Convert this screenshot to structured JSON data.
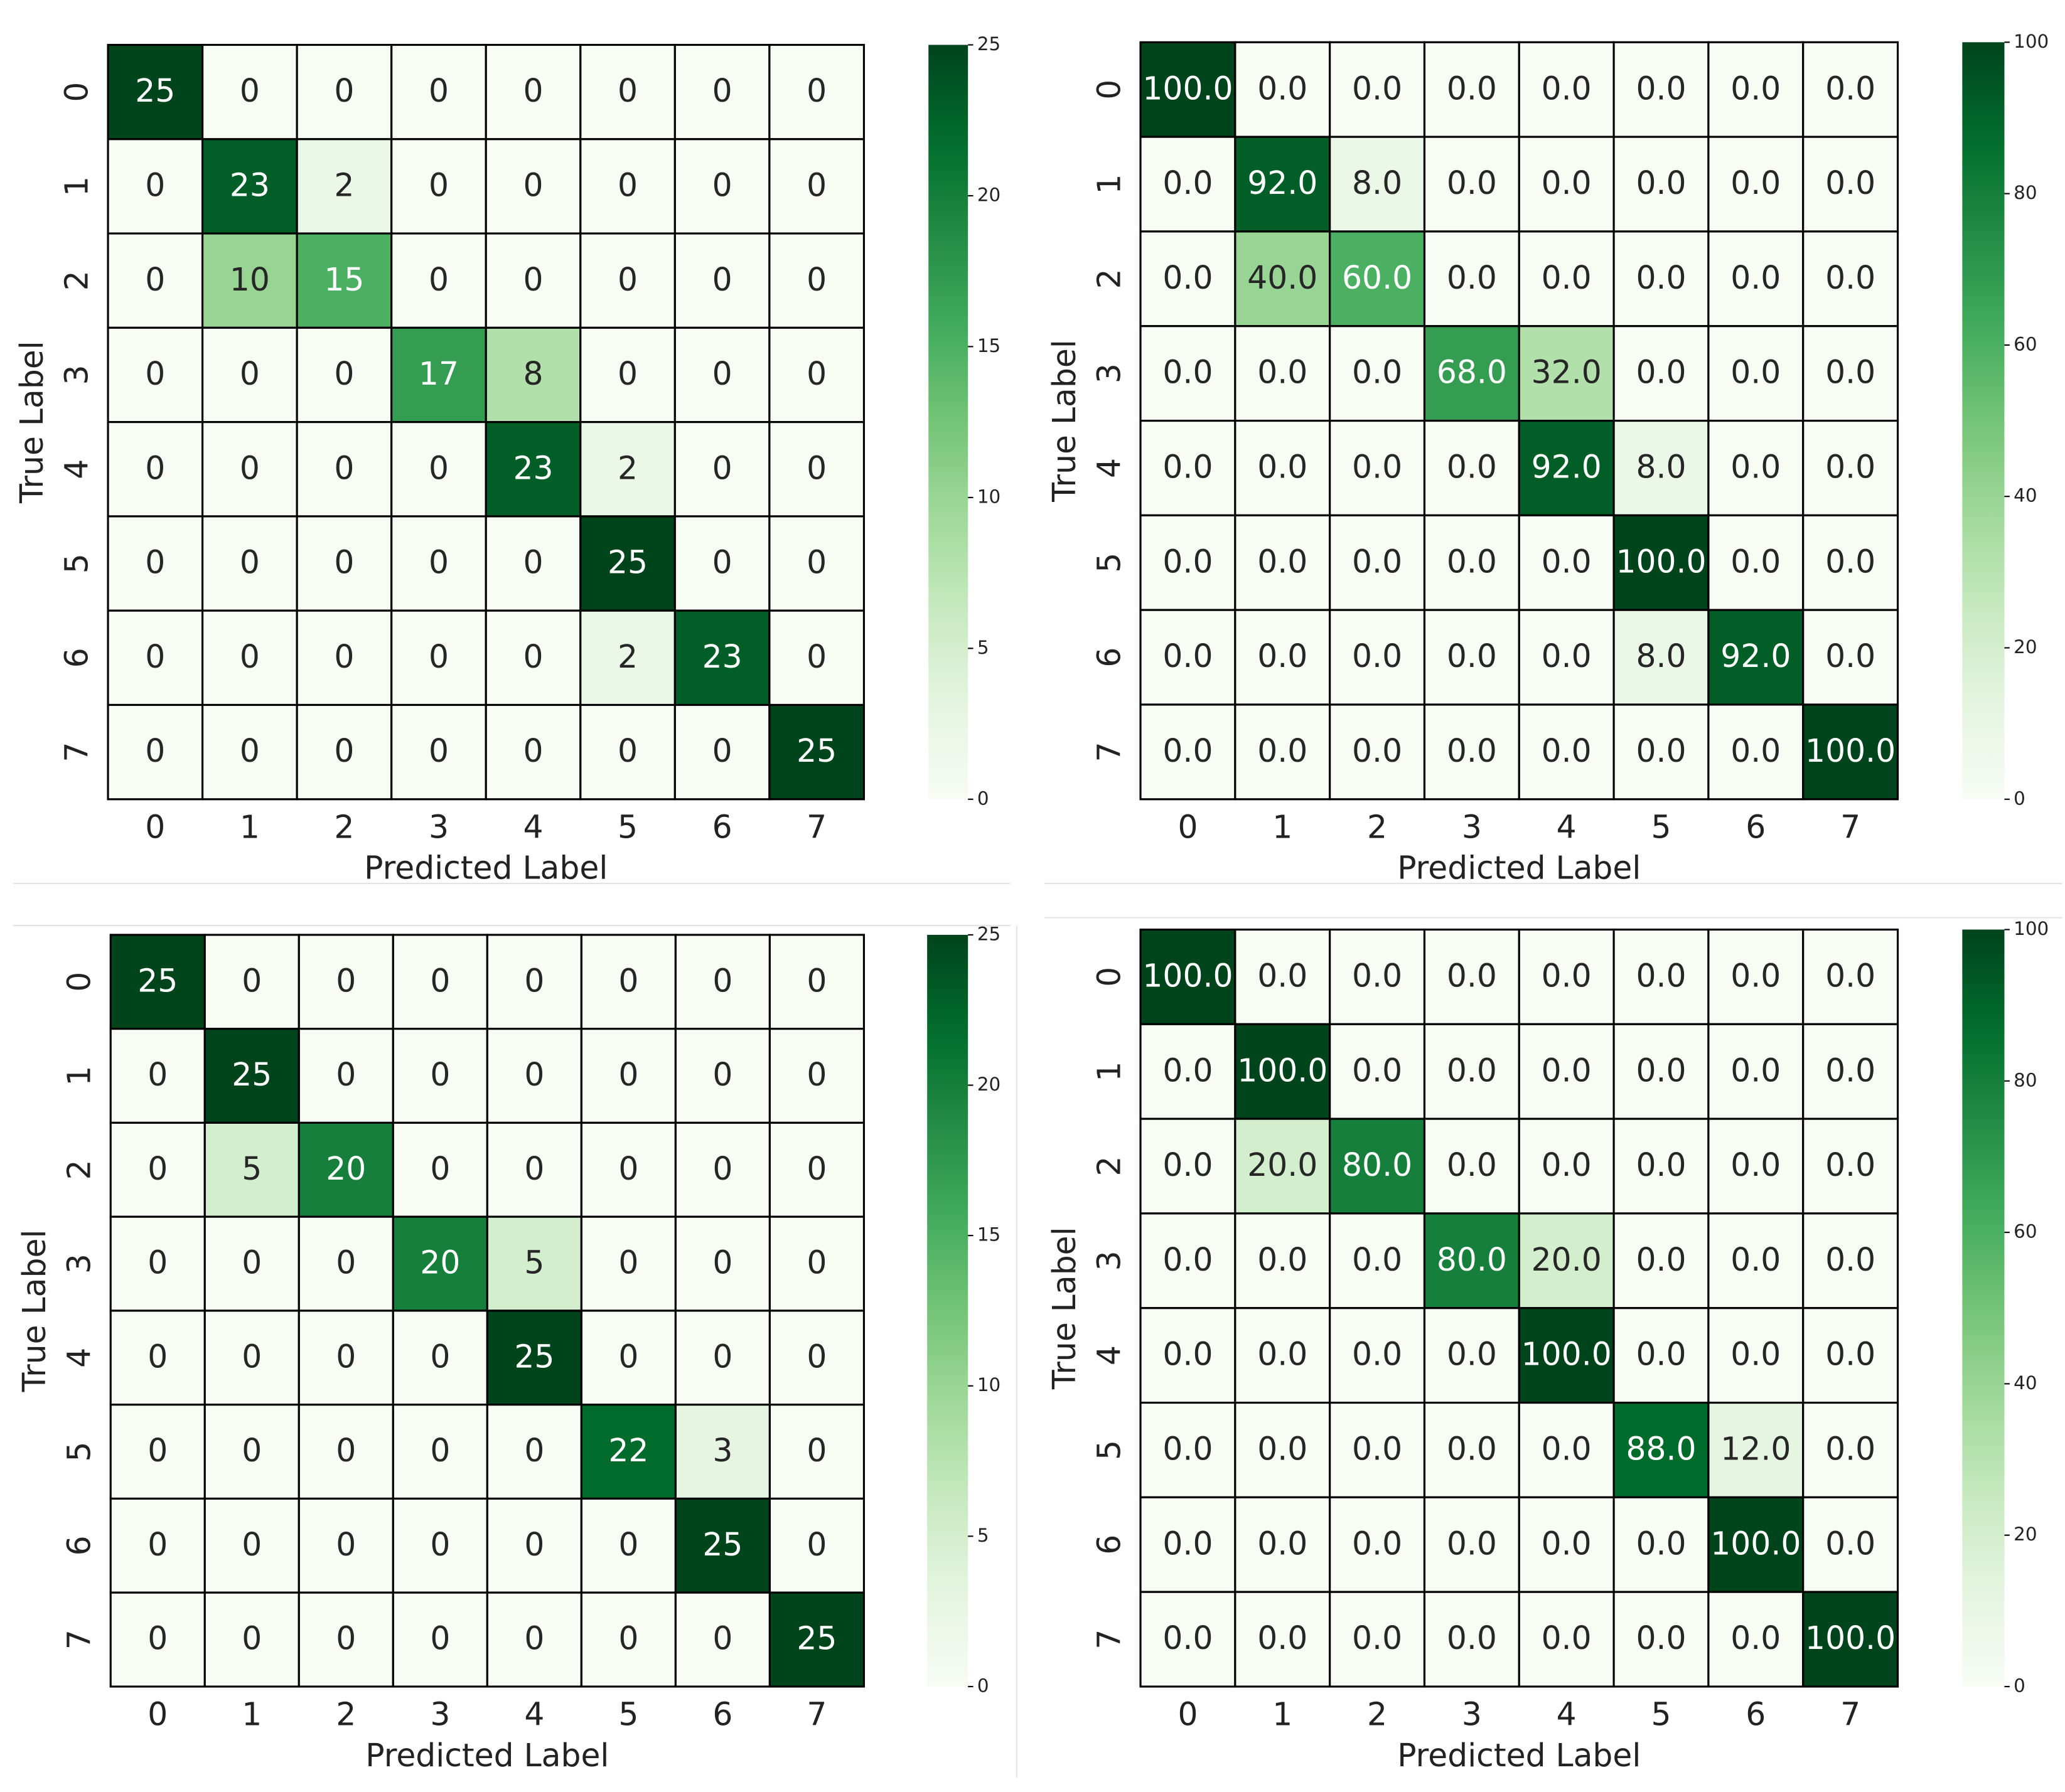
{
  "chart_data": [
    {
      "type": "heatmap",
      "x_label": "Predicted Label",
      "y_label": "True Label",
      "x": [
        "0",
        "1",
        "2",
        "3",
        "4",
        "5",
        "6",
        "7"
      ],
      "y": [
        "0",
        "1",
        "2",
        "3",
        "4",
        "5",
        "6",
        "7"
      ],
      "values": [
        [
          25,
          0,
          0,
          0,
          0,
          0,
          0,
          0
        ],
        [
          0,
          23,
          2,
          0,
          0,
          0,
          0,
          0
        ],
        [
          0,
          10,
          15,
          0,
          0,
          0,
          0,
          0
        ],
        [
          0,
          0,
          0,
          17,
          8,
          0,
          0,
          0
        ],
        [
          0,
          0,
          0,
          0,
          23,
          2,
          0,
          0
        ],
        [
          0,
          0,
          0,
          0,
          0,
          25,
          0,
          0
        ],
        [
          0,
          0,
          0,
          0,
          0,
          2,
          23,
          0
        ],
        [
          0,
          0,
          0,
          0,
          0,
          0,
          0,
          25
        ]
      ],
      "clim": [
        0,
        25
      ],
      "cticks": [
        0,
        5,
        10,
        15,
        20,
        25
      ],
      "colors": [
        "#f7fcf5",
        "#e5f5e0",
        "#c7e9c0",
        "#a1d99b",
        "#74c476",
        "#41ab5d",
        "#238b45",
        "#006d2c",
        "#00441b"
      ]
    },
    {
      "type": "heatmap",
      "x_label": "Predicted Label",
      "y_label": "True Label",
      "x": [
        "0",
        "1",
        "2",
        "3",
        "4",
        "5",
        "6",
        "7"
      ],
      "y": [
        "0",
        "1",
        "2",
        "3",
        "4",
        "5",
        "6",
        "7"
      ],
      "values": [
        [
          100,
          0,
          0,
          0,
          0,
          0,
          0,
          0
        ],
        [
          0,
          92,
          8,
          0,
          0,
          0,
          0,
          0
        ],
        [
          0,
          40,
          60,
          0,
          0,
          0,
          0,
          0
        ],
        [
          0,
          0,
          0,
          68,
          32,
          0,
          0,
          0
        ],
        [
          0,
          0,
          0,
          0,
          92,
          8,
          0,
          0
        ],
        [
          0,
          0,
          0,
          0,
          0,
          100,
          0,
          0
        ],
        [
          0,
          0,
          0,
          0,
          0,
          8,
          92,
          0
        ],
        [
          0,
          0,
          0,
          0,
          0,
          0,
          0,
          100
        ]
      ],
      "value_labels": [
        [
          "100.0",
          "0.0",
          "0.0",
          "0.0",
          "0.0",
          "0.0",
          "0.0",
          "0.0"
        ],
        [
          "0.0",
          "92.0",
          "8.0",
          "0.0",
          "0.0",
          "0.0",
          "0.0",
          "0.0"
        ],
        [
          "0.0",
          "40.0",
          "60.0",
          "0.0",
          "0.0",
          "0.0",
          "0.0",
          "0.0"
        ],
        [
          "0.0",
          "0.0",
          "0.0",
          "68.0",
          "32.0",
          "0.0",
          "0.0",
          "0.0"
        ],
        [
          "0.0",
          "0.0",
          "0.0",
          "0.0",
          "92.0",
          "8.0",
          "0.0",
          "0.0"
        ],
        [
          "0.0",
          "0.0",
          "0.0",
          "0.0",
          "0.0",
          "100.0",
          "0.0",
          "0.0"
        ],
        [
          "0.0",
          "0.0",
          "0.0",
          "0.0",
          "0.0",
          "8.0",
          "92.0",
          "0.0"
        ],
        [
          "0.0",
          "0.0",
          "0.0",
          "0.0",
          "0.0",
          "0.0",
          "0.0",
          "100.0"
        ]
      ],
      "clim": [
        0,
        100
      ],
      "cticks": [
        0,
        20,
        40,
        60,
        80,
        100
      ],
      "colors": [
        "#f7fcf5",
        "#e5f5e0",
        "#c7e9c0",
        "#a1d99b",
        "#74c476",
        "#41ab5d",
        "#238b45",
        "#006d2c",
        "#00441b"
      ]
    },
    {
      "type": "heatmap",
      "x_label": "Predicted Label",
      "y_label": "True Label",
      "x": [
        "0",
        "1",
        "2",
        "3",
        "4",
        "5",
        "6",
        "7"
      ],
      "y": [
        "0",
        "1",
        "2",
        "3",
        "4",
        "5",
        "6",
        "7"
      ],
      "values": [
        [
          25,
          0,
          0,
          0,
          0,
          0,
          0,
          0
        ],
        [
          0,
          25,
          0,
          0,
          0,
          0,
          0,
          0
        ],
        [
          0,
          5,
          20,
          0,
          0,
          0,
          0,
          0
        ],
        [
          0,
          0,
          0,
          20,
          5,
          0,
          0,
          0
        ],
        [
          0,
          0,
          0,
          0,
          25,
          0,
          0,
          0
        ],
        [
          0,
          0,
          0,
          0,
          0,
          22,
          3,
          0
        ],
        [
          0,
          0,
          0,
          0,
          0,
          0,
          25,
          0
        ],
        [
          0,
          0,
          0,
          0,
          0,
          0,
          0,
          25
        ]
      ],
      "clim": [
        0,
        25
      ],
      "cticks": [
        0,
        5,
        10,
        15,
        20,
        25
      ],
      "colors": [
        "#f7fcf5",
        "#e5f5e0",
        "#c7e9c0",
        "#a1d99b",
        "#74c476",
        "#41ab5d",
        "#238b45",
        "#006d2c",
        "#00441b"
      ]
    },
    {
      "type": "heatmap",
      "x_label": "Predicted Label",
      "y_label": "True Label",
      "x": [
        "0",
        "1",
        "2",
        "3",
        "4",
        "5",
        "6",
        "7"
      ],
      "y": [
        "0",
        "1",
        "2",
        "3",
        "4",
        "5",
        "6",
        "7"
      ],
      "values": [
        [
          100,
          0,
          0,
          0,
          0,
          0,
          0,
          0
        ],
        [
          0,
          100,
          0,
          0,
          0,
          0,
          0,
          0
        ],
        [
          0,
          20,
          80,
          0,
          0,
          0,
          0,
          0
        ],
        [
          0,
          0,
          0,
          80,
          20,
          0,
          0,
          0
        ],
        [
          0,
          0,
          0,
          0,
          100,
          0,
          0,
          0
        ],
        [
          0,
          0,
          0,
          0,
          0,
          88,
          12,
          0
        ],
        [
          0,
          0,
          0,
          0,
          0,
          0,
          100,
          0
        ],
        [
          0,
          0,
          0,
          0,
          0,
          0,
          0,
          100
        ]
      ],
      "value_labels": [
        [
          "100.0",
          "0.0",
          "0.0",
          "0.0",
          "0.0",
          "0.0",
          "0.0",
          "0.0"
        ],
        [
          "0.0",
          "100.0",
          "0.0",
          "0.0",
          "0.0",
          "0.0",
          "0.0",
          "0.0"
        ],
        [
          "0.0",
          "20.0",
          "80.0",
          "0.0",
          "0.0",
          "0.0",
          "0.0",
          "0.0"
        ],
        [
          "0.0",
          "0.0",
          "0.0",
          "80.0",
          "20.0",
          "0.0",
          "0.0",
          "0.0"
        ],
        [
          "0.0",
          "0.0",
          "0.0",
          "0.0",
          "100.0",
          "0.0",
          "0.0",
          "0.0"
        ],
        [
          "0.0",
          "0.0",
          "0.0",
          "0.0",
          "0.0",
          "88.0",
          "12.0",
          "0.0"
        ],
        [
          "0.0",
          "0.0",
          "0.0",
          "0.0",
          "0.0",
          "0.0",
          "100.0",
          "0.0"
        ],
        [
          "0.0",
          "0.0",
          "0.0",
          "0.0",
          "0.0",
          "0.0",
          "0.0",
          "100.0"
        ]
      ],
      "clim": [
        0,
        100
      ],
      "cticks": [
        0,
        20,
        40,
        60,
        80,
        100
      ],
      "colors": [
        "#f7fcf5",
        "#e5f5e0",
        "#c7e9c0",
        "#a1d99b",
        "#74c476",
        "#41ab5d",
        "#238b45",
        "#006d2c",
        "#00441b"
      ]
    }
  ]
}
